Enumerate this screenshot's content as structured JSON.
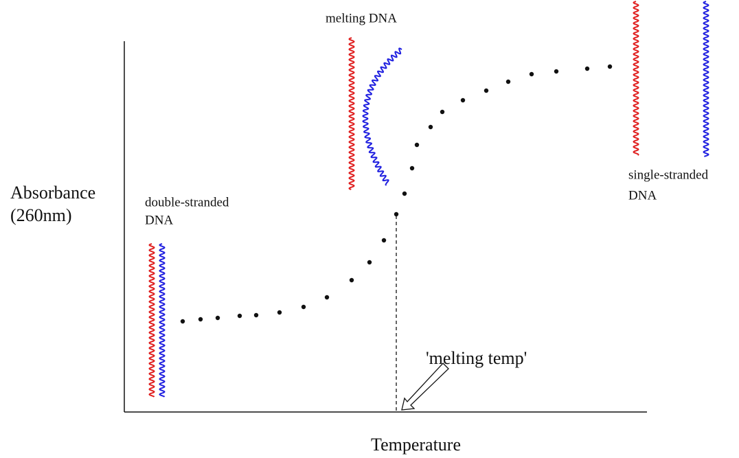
{
  "axes": {
    "y_label": [
      "Absorbance",
      "(260nm)"
    ],
    "x_label": "Temperature"
  },
  "annotations": {
    "double_stranded": [
      "double-stranded",
      "DNA"
    ],
    "melting": "melting DNA",
    "single_stranded": [
      "single-stranded",
      "DNA"
    ],
    "melting_temp": "'melting temp'"
  }
}
